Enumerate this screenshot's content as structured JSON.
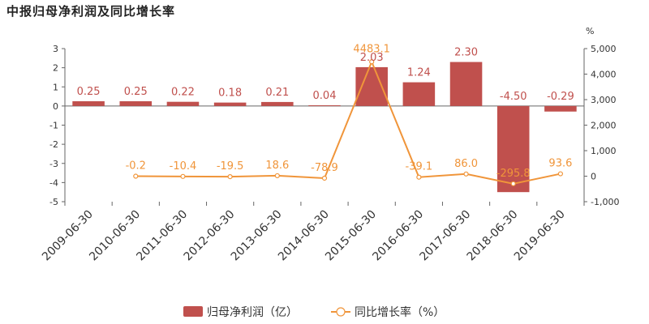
{
  "title": "中报归母净利润及同比增长率",
  "chart_data": {
    "type": "bar",
    "title": "中报归母净利润及同比增长率",
    "categories": [
      "2009-06-30",
      "2010-06-30",
      "2011-06-30",
      "2012-06-30",
      "2013-06-30",
      "2014-06-30",
      "2015-06-30",
      "2016-06-30",
      "2017-06-30",
      "2018-06-30",
      "2019-06-30"
    ],
    "series": [
      {
        "name": "归母净利润（亿）",
        "type": "bar",
        "axis": "left",
        "color": "#c0504d",
        "values": [
          0.25,
          0.25,
          0.22,
          0.18,
          0.21,
          0.04,
          2.03,
          1.24,
          2.3,
          -4.5,
          -0.29
        ],
        "labels": [
          "0.25",
          "0.25",
          "0.22",
          "0.18",
          "0.21",
          "0.04",
          "2.03",
          "1.24",
          "2.30",
          "-4.50",
          "-0.29"
        ]
      },
      {
        "name": "同比增长率（%）",
        "type": "line",
        "axis": "right",
        "color": "#f0953a",
        "values": [
          null,
          -0.2,
          -10.4,
          -19.5,
          18.6,
          -78.9,
          4483.1,
          -39.1,
          86.0,
          -295.8,
          93.6
        ],
        "labels": [
          "",
          "-0.2",
          "-10.4",
          "-19.5",
          "18.6",
          "-78.9",
          "4483.1",
          "-39.1",
          "86.0",
          "-295.8",
          "93.6"
        ]
      }
    ],
    "y_left": {
      "ylim": [
        -5,
        3
      ],
      "ticks": [
        "3",
        "2",
        "1",
        "0",
        "-1",
        "-2",
        "-3",
        "-4",
        "-5"
      ],
      "tick_values": [
        3,
        2,
        1,
        0,
        -1,
        -2,
        -3,
        -4,
        -5
      ]
    },
    "y_right": {
      "unit": "%",
      "ylim": [
        -1000,
        5000
      ],
      "ticks": [
        "5,000",
        "4,000",
        "3,000",
        "2,000",
        "1,000",
        "0",
        "-1,000"
      ],
      "tick_values": [
        5000,
        4000,
        3000,
        2000,
        1000,
        0,
        -1000
      ]
    },
    "grid": false,
    "legend_position": "bottom-center"
  }
}
